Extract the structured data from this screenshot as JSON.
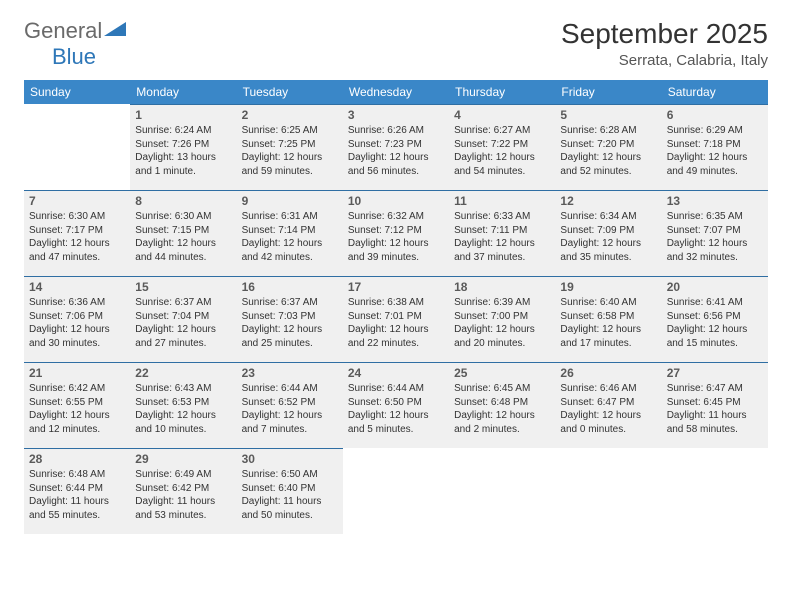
{
  "brand": {
    "part1": "General",
    "part2": "Blue"
  },
  "title": "September 2025",
  "location": "Serrata, Calabria, Italy",
  "colors": {
    "header_bg": "#3a87c8",
    "header_text": "#ffffff",
    "cell_bg": "#f0f0f0",
    "cell_border_top": "#2f6ea3",
    "brand_gray": "#6a6a6a",
    "brand_blue": "#2e77b8"
  },
  "day_headers": [
    "Sunday",
    "Monday",
    "Tuesday",
    "Wednesday",
    "Thursday",
    "Friday",
    "Saturday"
  ],
  "weeks": [
    [
      null,
      {
        "n": "1",
        "sr": "6:24 AM",
        "ss": "7:26 PM",
        "dl": "13 hours and 1 minute."
      },
      {
        "n": "2",
        "sr": "6:25 AM",
        "ss": "7:25 PM",
        "dl": "12 hours and 59 minutes."
      },
      {
        "n": "3",
        "sr": "6:26 AM",
        "ss": "7:23 PM",
        "dl": "12 hours and 56 minutes."
      },
      {
        "n": "4",
        "sr": "6:27 AM",
        "ss": "7:22 PM",
        "dl": "12 hours and 54 minutes."
      },
      {
        "n": "5",
        "sr": "6:28 AM",
        "ss": "7:20 PM",
        "dl": "12 hours and 52 minutes."
      },
      {
        "n": "6",
        "sr": "6:29 AM",
        "ss": "7:18 PM",
        "dl": "12 hours and 49 minutes."
      }
    ],
    [
      {
        "n": "7",
        "sr": "6:30 AM",
        "ss": "7:17 PM",
        "dl": "12 hours and 47 minutes."
      },
      {
        "n": "8",
        "sr": "6:30 AM",
        "ss": "7:15 PM",
        "dl": "12 hours and 44 minutes."
      },
      {
        "n": "9",
        "sr": "6:31 AM",
        "ss": "7:14 PM",
        "dl": "12 hours and 42 minutes."
      },
      {
        "n": "10",
        "sr": "6:32 AM",
        "ss": "7:12 PM",
        "dl": "12 hours and 39 minutes."
      },
      {
        "n": "11",
        "sr": "6:33 AM",
        "ss": "7:11 PM",
        "dl": "12 hours and 37 minutes."
      },
      {
        "n": "12",
        "sr": "6:34 AM",
        "ss": "7:09 PM",
        "dl": "12 hours and 35 minutes."
      },
      {
        "n": "13",
        "sr": "6:35 AM",
        "ss": "7:07 PM",
        "dl": "12 hours and 32 minutes."
      }
    ],
    [
      {
        "n": "14",
        "sr": "6:36 AM",
        "ss": "7:06 PM",
        "dl": "12 hours and 30 minutes."
      },
      {
        "n": "15",
        "sr": "6:37 AM",
        "ss": "7:04 PM",
        "dl": "12 hours and 27 minutes."
      },
      {
        "n": "16",
        "sr": "6:37 AM",
        "ss": "7:03 PM",
        "dl": "12 hours and 25 minutes."
      },
      {
        "n": "17",
        "sr": "6:38 AM",
        "ss": "7:01 PM",
        "dl": "12 hours and 22 minutes."
      },
      {
        "n": "18",
        "sr": "6:39 AM",
        "ss": "7:00 PM",
        "dl": "12 hours and 20 minutes."
      },
      {
        "n": "19",
        "sr": "6:40 AM",
        "ss": "6:58 PM",
        "dl": "12 hours and 17 minutes."
      },
      {
        "n": "20",
        "sr": "6:41 AM",
        "ss": "6:56 PM",
        "dl": "12 hours and 15 minutes."
      }
    ],
    [
      {
        "n": "21",
        "sr": "6:42 AM",
        "ss": "6:55 PM",
        "dl": "12 hours and 12 minutes."
      },
      {
        "n": "22",
        "sr": "6:43 AM",
        "ss": "6:53 PM",
        "dl": "12 hours and 10 minutes."
      },
      {
        "n": "23",
        "sr": "6:44 AM",
        "ss": "6:52 PM",
        "dl": "12 hours and 7 minutes."
      },
      {
        "n": "24",
        "sr": "6:44 AM",
        "ss": "6:50 PM",
        "dl": "12 hours and 5 minutes."
      },
      {
        "n": "25",
        "sr": "6:45 AM",
        "ss": "6:48 PM",
        "dl": "12 hours and 2 minutes."
      },
      {
        "n": "26",
        "sr": "6:46 AM",
        "ss": "6:47 PM",
        "dl": "12 hours and 0 minutes."
      },
      {
        "n": "27",
        "sr": "6:47 AM",
        "ss": "6:45 PM",
        "dl": "11 hours and 58 minutes."
      }
    ],
    [
      {
        "n": "28",
        "sr": "6:48 AM",
        "ss": "6:44 PM",
        "dl": "11 hours and 55 minutes."
      },
      {
        "n": "29",
        "sr": "6:49 AM",
        "ss": "6:42 PM",
        "dl": "11 hours and 53 minutes."
      },
      {
        "n": "30",
        "sr": "6:50 AM",
        "ss": "6:40 PM",
        "dl": "11 hours and 50 minutes."
      },
      null,
      null,
      null,
      null
    ]
  ],
  "labels": {
    "sunrise": "Sunrise: ",
    "sunset": "Sunset: ",
    "daylight": "Daylight: "
  }
}
